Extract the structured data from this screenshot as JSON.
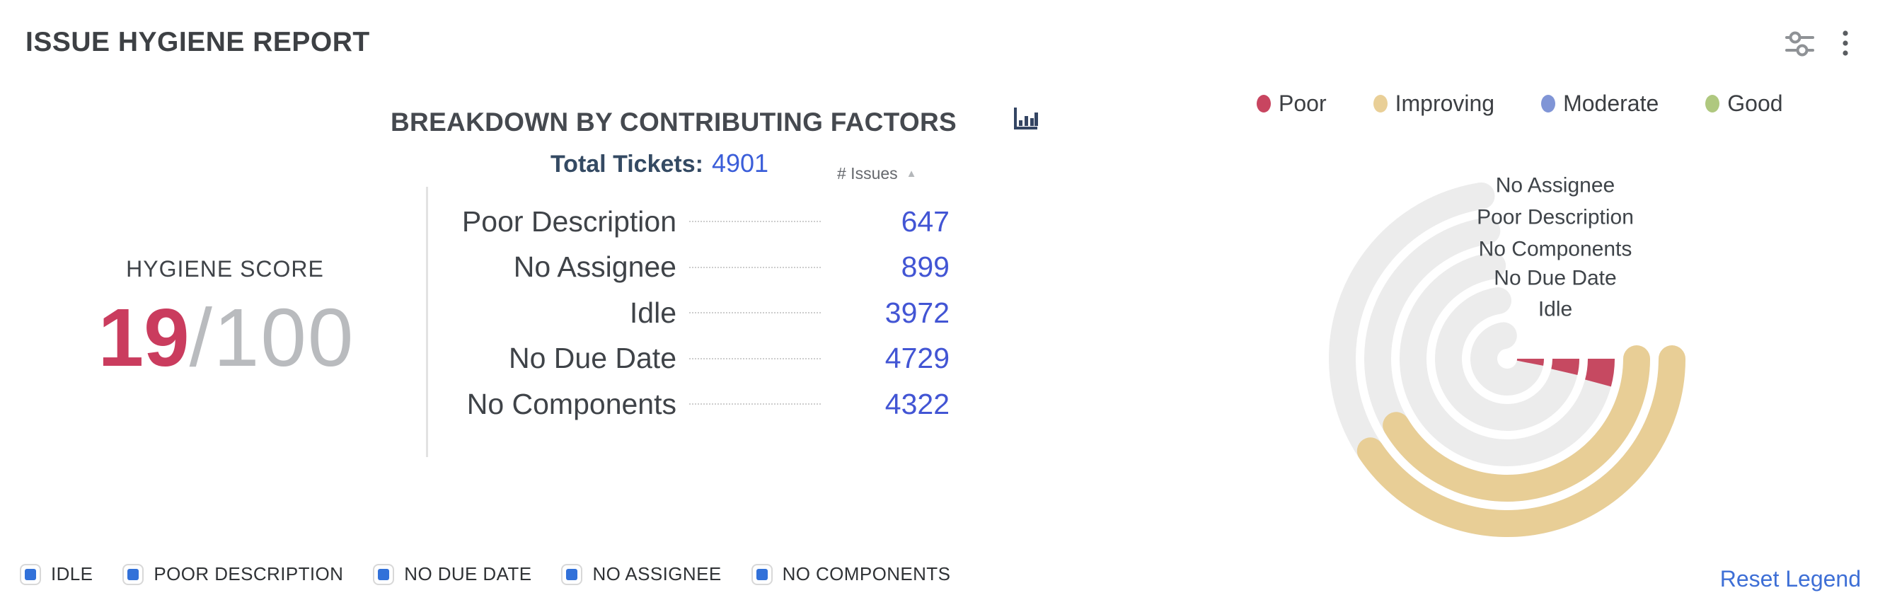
{
  "header": {
    "title": "ISSUE HYGIENE REPORT"
  },
  "toolbar": {
    "settings_icon": "sliders-icon",
    "menu_icon": "kebab-menu-icon",
    "icon_color": "#8f9296"
  },
  "status_legend": {
    "items": [
      {
        "label": "Poor",
        "color": "#c84560"
      },
      {
        "label": "Improving",
        "color": "#e9cf97"
      },
      {
        "label": "Moderate",
        "color": "#8095d6"
      },
      {
        "label": "Good",
        "color": "#afc87f"
      }
    ]
  },
  "hygiene_score": {
    "label": "HYGIENE SCORE",
    "score": "19",
    "denominator": "/100",
    "score_color": "#ca3c5e",
    "denominator_color": "#b9bbbe"
  },
  "breakdown": {
    "heading": "BREAKDOWN BY CONTRIBUTING FACTORS",
    "chart_type_icon": "bar-chart-icon",
    "total_label": "Total Tickets:",
    "total_value": "4901",
    "issues_column_header": "# Issues",
    "sort_icon": "▲",
    "rows": [
      {
        "factor": "Poor Description",
        "issues": "647"
      },
      {
        "factor": "No Assignee",
        "issues": "899"
      },
      {
        "factor": "Idle",
        "issues": "3972"
      },
      {
        "factor": "No Due Date",
        "issues": "4729"
      },
      {
        "factor": "No Components",
        "issues": "4322"
      }
    ],
    "value_color": "#4255d4"
  },
  "chart_data": {
    "type": "radial-bar",
    "title": "Issue hygiene contributing factors (radial gauge, outermost to innermost ring)",
    "total_tickets": 4901,
    "gauge_start_deg_from_east": 0,
    "gauge_track_sweep_deg": 261,
    "track_color": "#ececec",
    "stroke_width": 38,
    "label_dx": 68,
    "rings": [
      {
        "name": "No Assignee",
        "issues": 899,
        "status": "Improving",
        "color": "#e8ce96",
        "sweep_deg": 146,
        "radius": 233,
        "label_dy": -245,
        "cap": "round"
      },
      {
        "name": "Poor Description",
        "issues": 647,
        "status": "Improving",
        "color": "#e8ce96",
        "sweep_deg": 149,
        "radius": 183,
        "label_dy": -200,
        "cap": "round"
      },
      {
        "name": "No Components",
        "issues": 4322,
        "status": "Poor",
        "color": "#c64961",
        "sweep_deg": 15,
        "radius": 133,
        "label_dy": -155,
        "cap": "butt"
      },
      {
        "name": "No Due Date",
        "issues": 4729,
        "status": "Poor",
        "color": "#c64961",
        "sweep_deg": 13,
        "radius": 83,
        "label_dy": -114,
        "cap": "butt"
      },
      {
        "name": "Idle",
        "issues": 3972,
        "status": "Poor",
        "color": "#c64961",
        "sweep_deg": 11,
        "radius": 33,
        "label_dy": -70,
        "cap": "butt"
      }
    ],
    "legend_position": "top-right",
    "legend_entries": [
      "Poor",
      "Improving",
      "Moderate",
      "Good"
    ]
  },
  "bottom_legend": {
    "checkbox_color": "#3271d9",
    "items": [
      {
        "label": "IDLE",
        "checked": true
      },
      {
        "label": "POOR DESCRIPTION",
        "checked": true
      },
      {
        "label": "NO DUE DATE",
        "checked": true
      },
      {
        "label": "NO ASSIGNEE",
        "checked": true
      },
      {
        "label": "NO COMPONENTS",
        "checked": true
      }
    ],
    "reset_label": "Reset Legend"
  }
}
